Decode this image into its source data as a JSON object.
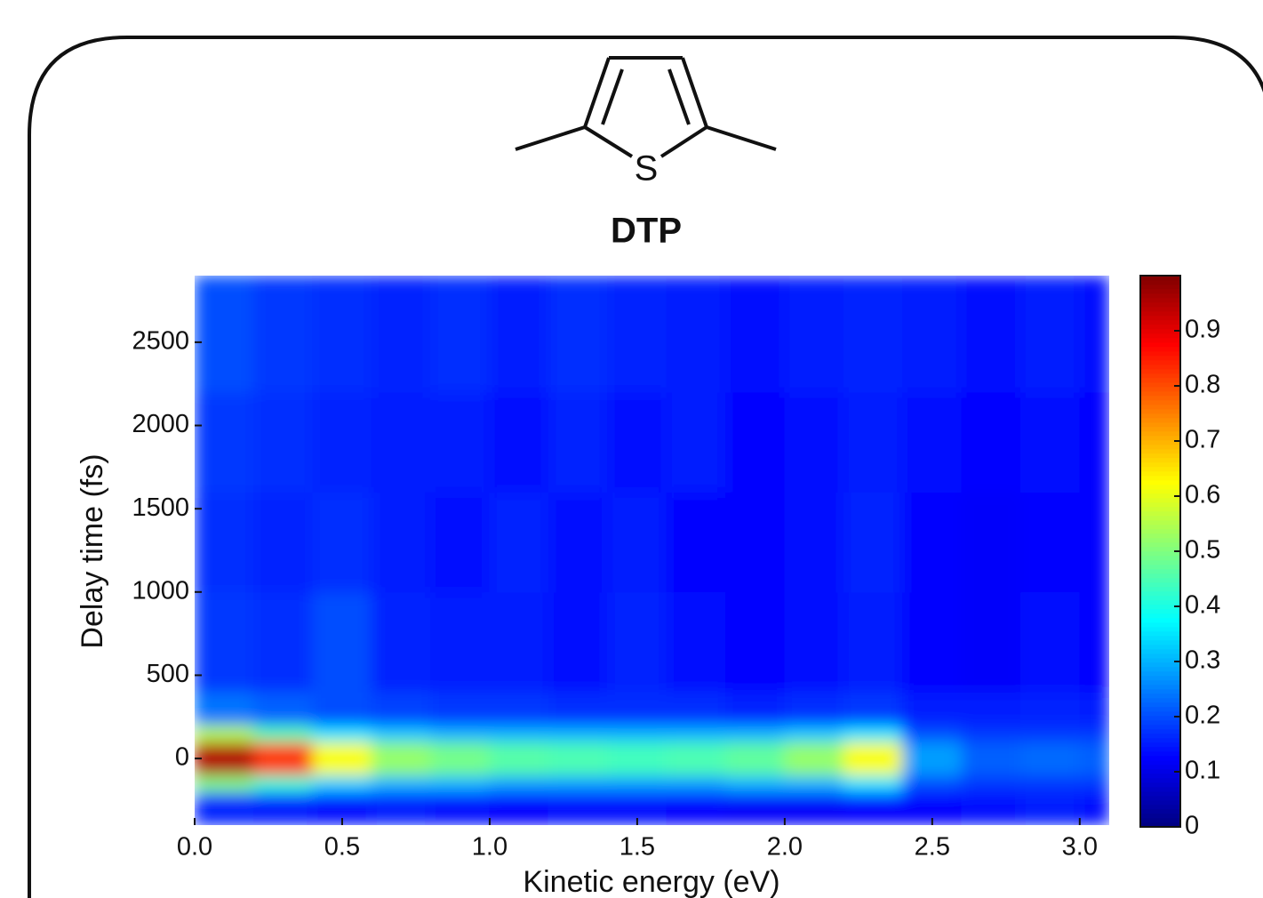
{
  "molecule": {
    "atom_label": "S"
  },
  "chart_data": {
    "type": "heatmap",
    "title": "DTP",
    "xlabel": "Kinetic energy (eV)",
    "ylabel": "Delay time (fs)",
    "colormap": "jet",
    "xlim": [
      0,
      3.1
    ],
    "ylim": [
      -400,
      2900
    ],
    "clim": [
      0,
      1
    ],
    "xticks": [
      {
        "value": 0,
        "label": "0.0"
      },
      0.5,
      {
        "value": 1,
        "label": "1.0"
      },
      1.5,
      {
        "value": 2,
        "label": "2.0"
      },
      2.5,
      {
        "value": 3,
        "label": "3.0"
      }
    ],
    "yticks": [
      0,
      500,
      1000,
      1500,
      2000,
      2500
    ],
    "cticks": [
      0,
      0.1,
      0.2,
      0.3,
      0.4,
      0.5,
      0.6,
      0.7,
      0.8,
      0.9
    ],
    "xbins": [
      0,
      0.2,
      0.4,
      0.6,
      0.8,
      1.0,
      1.2,
      1.4,
      1.6,
      1.8,
      2.0,
      2.2,
      2.4,
      2.6,
      2.8,
      3.0,
      3.1
    ],
    "ybins": [
      -400,
      -200,
      -100,
      100,
      200,
      400,
      1000,
      1600,
      2200,
      2900
    ],
    "z": [
      [
        0.16,
        0.15,
        0.14,
        0.15,
        0.14,
        0.13,
        0.14,
        0.14,
        0.13,
        0.12,
        0.12,
        0.13,
        0.13,
        0.14,
        0.15,
        0.14
      ],
      [
        0.5,
        0.42,
        0.33,
        0.3,
        0.3,
        0.28,
        0.28,
        0.28,
        0.28,
        0.3,
        0.3,
        0.35,
        0.2,
        0.18,
        0.18,
        0.18
      ],
      [
        0.95,
        0.82,
        0.62,
        0.52,
        0.49,
        0.46,
        0.45,
        0.44,
        0.45,
        0.47,
        0.52,
        0.62,
        0.28,
        0.22,
        0.23,
        0.22
      ],
      [
        0.55,
        0.45,
        0.35,
        0.32,
        0.3,
        0.3,
        0.3,
        0.3,
        0.3,
        0.3,
        0.32,
        0.35,
        0.2,
        0.18,
        0.18,
        0.18
      ],
      [
        0.24,
        0.22,
        0.2,
        0.19,
        0.18,
        0.18,
        0.17,
        0.17,
        0.17,
        0.16,
        0.17,
        0.18,
        0.15,
        0.15,
        0.16,
        0.15
      ],
      [
        0.18,
        0.17,
        0.2,
        0.16,
        0.15,
        0.15,
        0.14,
        0.16,
        0.14,
        0.13,
        0.14,
        0.15,
        0.13,
        0.12,
        0.14,
        0.13
      ],
      [
        0.17,
        0.16,
        0.17,
        0.15,
        0.14,
        0.16,
        0.14,
        0.15,
        0.13,
        0.13,
        0.14,
        0.16,
        0.13,
        0.12,
        0.13,
        0.13
      ],
      [
        0.18,
        0.17,
        0.16,
        0.15,
        0.15,
        0.14,
        0.16,
        0.14,
        0.15,
        0.13,
        0.14,
        0.15,
        0.14,
        0.13,
        0.14,
        0.13
      ],
      [
        0.2,
        0.18,
        0.17,
        0.16,
        0.17,
        0.15,
        0.17,
        0.16,
        0.15,
        0.14,
        0.15,
        0.16,
        0.15,
        0.14,
        0.15,
        0.14
      ]
    ]
  }
}
